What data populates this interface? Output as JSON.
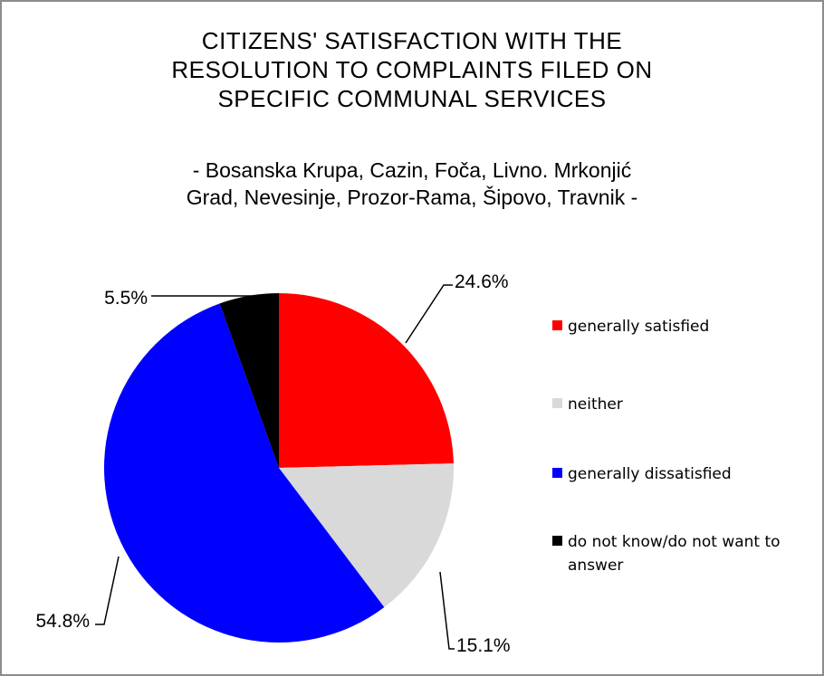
{
  "chart_data": {
    "type": "pie",
    "title": "CITIZENS' SATISFACTION WITH THE RESOLUTION TO COMPLAINTS FILED ON SPECIFIC COMMUNAL SERVICES",
    "title_lines": [
      "CITIZENS' SATISFACTION WITH THE",
      "RESOLUTION TO COMPLAINTS FILED ON",
      "SPECIFIC COMMUNAL SERVICES"
    ],
    "subtitle": "- Bosanska Krupa, Cazin, Foča, Livno. Mrkonjić Grad, Nevesinje, Prozor-Rama, Šipovo, Travnik -",
    "subtitle_lines": [
      "- Bosanska Krupa, Cazin, Foča, Livno. Mrkonjić",
      "Grad, Nevesinje, Prozor-Rama, Šipovo, Travnik -"
    ],
    "legend_position": "right",
    "slices": [
      {
        "label": "generally satisfied",
        "value": 24.6,
        "value_label": "24.6%",
        "color": "#ff0000"
      },
      {
        "label": "neither",
        "value": 15.1,
        "value_label": "15.1%",
        "color": "#d9d9d9"
      },
      {
        "label": "generally dissatisfied",
        "value": 54.8,
        "value_label": "54.8%",
        "color": "#0000ff"
      },
      {
        "label": "do not know/do not want to answer",
        "value": 5.5,
        "value_label": "5.5%",
        "color": "#000000"
      }
    ]
  }
}
